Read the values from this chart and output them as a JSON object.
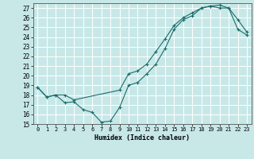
{
  "xlabel": "Humidex (Indice chaleur)",
  "bg_color": "#c8e8e8",
  "line_color": "#1a6b6b",
  "grid_color": "#ffffff",
  "xlim": [
    -0.5,
    23.5
  ],
  "ylim": [
    15,
    27.5
  ],
  "xticks": [
    0,
    1,
    2,
    3,
    4,
    5,
    6,
    7,
    8,
    9,
    10,
    11,
    12,
    13,
    14,
    15,
    16,
    17,
    18,
    19,
    20,
    21,
    22,
    23
  ],
  "yticks": [
    15,
    16,
    17,
    18,
    19,
    20,
    21,
    22,
    23,
    24,
    25,
    26,
    27
  ],
  "line1_x": [
    0,
    1,
    2,
    3,
    4,
    5,
    6,
    7,
    8,
    9,
    10,
    11,
    12,
    13,
    14,
    15,
    16,
    17,
    18,
    19,
    20,
    21,
    22,
    23
  ],
  "line1_y": [
    18.8,
    17.8,
    18.0,
    17.2,
    17.3,
    16.5,
    16.2,
    15.2,
    15.3,
    16.7,
    19.0,
    19.3,
    20.2,
    21.2,
    22.8,
    24.8,
    25.8,
    26.2,
    27.0,
    27.2,
    27.0,
    27.0,
    25.8,
    24.5
  ],
  "line2_x": [
    0,
    1,
    2,
    3,
    4,
    9,
    10,
    11,
    12,
    13,
    14,
    15,
    16,
    17,
    18,
    19,
    20,
    21,
    22,
    23
  ],
  "line2_y": [
    18.8,
    17.8,
    18.0,
    18.0,
    17.5,
    18.5,
    20.2,
    20.5,
    21.2,
    22.5,
    23.8,
    25.2,
    26.0,
    26.5,
    27.0,
    27.2,
    27.3,
    27.0,
    24.8,
    24.2
  ]
}
